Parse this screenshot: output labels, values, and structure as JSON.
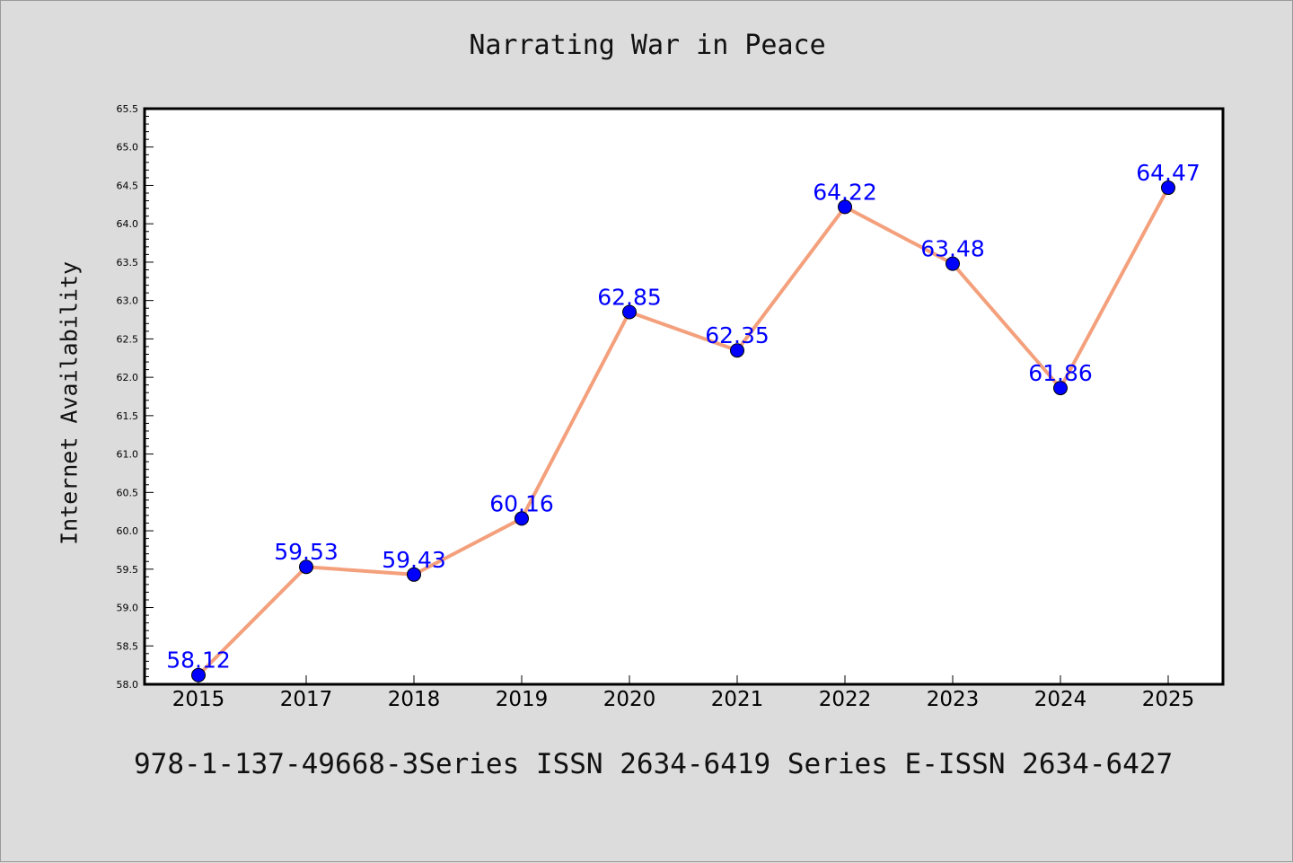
{
  "colors": {
    "background": "#dcdcdc",
    "plot_background": "#ffffff",
    "line": "#f4a07c",
    "marker": "#0000ff",
    "label": "#0000ff"
  },
  "footer": "978-1-137-49668-3Series ISSN 2634-6419 Series E-ISSN 2634-6427",
  "chart_data": {
    "type": "line",
    "title": "Narrating War in Peace",
    "xlabel": "",
    "ylabel": "Internet Availability",
    "categories": [
      "2015",
      "2017",
      "2018",
      "2019",
      "2020",
      "2021",
      "2022",
      "2023",
      "2024",
      "2025"
    ],
    "series": [
      {
        "values": [
          58.12,
          59.53,
          59.43,
          60.16,
          62.85,
          62.35,
          64.22,
          63.48,
          61.86,
          64.47
        ],
        "labels": [
          "58.12",
          "59.53",
          "59.43",
          "60.16",
          "62.85",
          "62.35",
          "64.22",
          "63.48",
          "61.86",
          "64.47"
        ]
      }
    ],
    "ylim": [
      58.0,
      65.5
    ],
    "yticks": [
      "58.0",
      "58.5",
      "59.0",
      "59.5",
      "60.0",
      "60.5",
      "61.0",
      "61.5",
      "62.0",
      "62.5",
      "63.0",
      "63.5",
      "64.0",
      "64.5",
      "65.0",
      "65.5"
    ],
    "grid": false,
    "legend": "none"
  }
}
